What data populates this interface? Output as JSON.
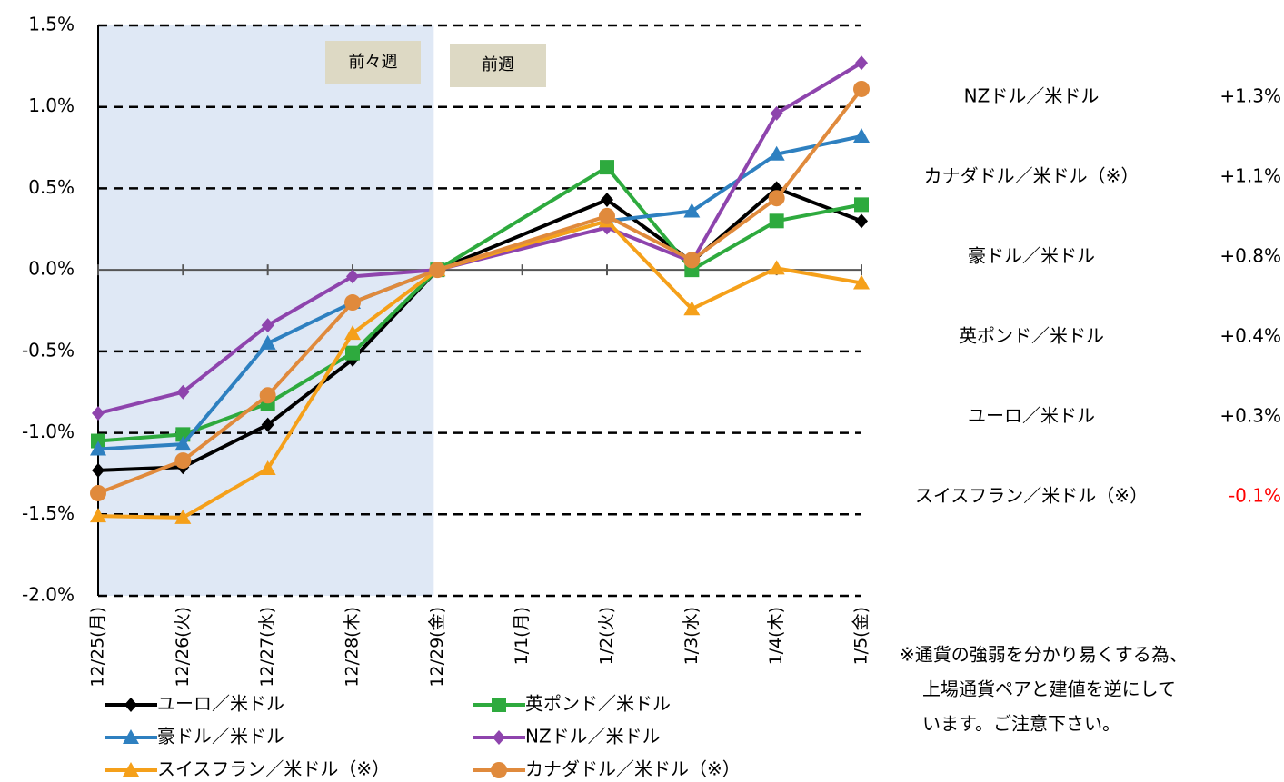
{
  "chart_data": {
    "type": "line",
    "categories": [
      "12/25(月)",
      "12/26(火)",
      "12/27(水)",
      "12/28(木)",
      "12/29(金)",
      "1/1(月)",
      "1/2(火)",
      "1/3(水)",
      "1/4(木)",
      "1/5(金)"
    ],
    "series": [
      {
        "name": "ユーロ／米ドル",
        "color": "#000000",
        "marker": "diamond",
        "values": [
          -1.23,
          -1.21,
          -0.95,
          -0.55,
          0.0,
          null,
          0.43,
          0.05,
          0.5,
          0.3
        ]
      },
      {
        "name": "英ポンド／米ドル",
        "color": "#2eaa3e",
        "marker": "square",
        "values": [
          -1.05,
          -1.01,
          -0.82,
          -0.51,
          0.0,
          null,
          0.63,
          0.0,
          0.3,
          0.4
        ]
      },
      {
        "name": "豪ドル／米ドル",
        "color": "#2e80c0",
        "marker": "triangle",
        "values": [
          -1.1,
          -1.07,
          -0.45,
          -0.2,
          0.0,
          null,
          0.3,
          0.36,
          0.71,
          0.82
        ]
      },
      {
        "name": "NZドル／米ドル",
        "color": "#8e44ad",
        "marker": "diamond",
        "values": [
          -0.88,
          -0.75,
          -0.34,
          -0.04,
          0.0,
          null,
          0.26,
          0.05,
          0.96,
          1.27
        ]
      },
      {
        "name": "スイスフラン／米ドル（※）",
        "color": "#f5a01a",
        "marker": "triangle",
        "values": [
          -1.51,
          -1.52,
          -1.22,
          -0.39,
          0.0,
          null,
          0.3,
          -0.24,
          0.01,
          -0.08
        ]
      },
      {
        "name": "カナダドル／米ドル（※）",
        "color": "#e08a3c",
        "marker": "circle",
        "values": [
          -1.37,
          -1.17,
          -0.77,
          -0.2,
          0.0,
          null,
          0.33,
          0.06,
          0.44,
          1.11
        ]
      }
    ],
    "connect_gaps": true,
    "ylim": [
      -2.0,
      1.5
    ],
    "yticks": [
      {
        "value": -2.0,
        "label": "-2.0%"
      },
      {
        "value": -1.5,
        "label": "-1.5%"
      },
      {
        "value": -1.0,
        "label": "-1.0%"
      },
      {
        "value": -0.5,
        "label": "-0.5%"
      },
      {
        "value": 0.0,
        "label": "0.0%"
      },
      {
        "value": 0.5,
        "label": "0.5%"
      },
      {
        "value": 1.0,
        "label": "1.0%"
      },
      {
        "value": 1.5,
        "label": "1.5%"
      }
    ],
    "grid": true,
    "shaded_region": {
      "from": 0,
      "to": 4,
      "color": "#dfe8f5"
    },
    "period_labels": [
      "前々週",
      "前週"
    ],
    "summary": [
      {
        "name": "NZドル／米ドル",
        "label": "+1.3%",
        "color": "#000000"
      },
      {
        "name": "カナダドル／米ドル（※）",
        "label": "+1.1%",
        "color": "#000000"
      },
      {
        "name": "豪ドル／米ドル",
        "label": "+0.8%",
        "color": "#000000"
      },
      {
        "name": "英ポンド／米ドル",
        "label": "+0.4%",
        "color": "#000000"
      },
      {
        "name": "ユーロ／米ドル",
        "label": "+0.3%",
        "color": "#000000"
      },
      {
        "name": "スイスフラン／米ドル（※）",
        "label": "-0.1%",
        "color": "#ff0000"
      }
    ],
    "note": [
      "※通貨の強弱を分かり易くする為、",
      "上場通貨ペアと建値を逆にして",
      "います。ご注意下さい。"
    ]
  }
}
